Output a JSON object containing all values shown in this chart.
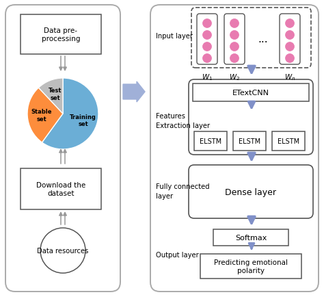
{
  "bg_color": "#ffffff",
  "pie_colors": [
    "#6baed6",
    "#fd8d3c",
    "#bdbdbd"
  ],
  "pie_sizes": [
    0.6,
    0.28,
    0.12
  ],
  "pie_labels": [
    "Training\nset",
    "Stable\nset",
    "Test\nset"
  ],
  "node_color": "#e87bb0",
  "left_panel_label": "Data pre-\nprocessing",
  "download_label": "Download the\ndataset",
  "resources_label": "Data resources",
  "input_layer_label": "Input layer",
  "features_layer_label": "Features\nExtraction layer",
  "fc_layer_label": "Fully connected\nlayer",
  "output_layer_label": "Output layer",
  "etextcnn_label": "ETextCNN",
  "elstm_label": "ELSTM",
  "dense_label": "Dense layer",
  "softmax_label": "Softmax",
  "predict_label": "Predicting emotional\npolarity",
  "w1_label": "$W_1$",
  "w2_label": "$W_2$",
  "wn_label": "$W_n$",
  "arrow_color": "#8090c8",
  "box_edge": "#555555",
  "panel_edge": "#aaaaaa"
}
